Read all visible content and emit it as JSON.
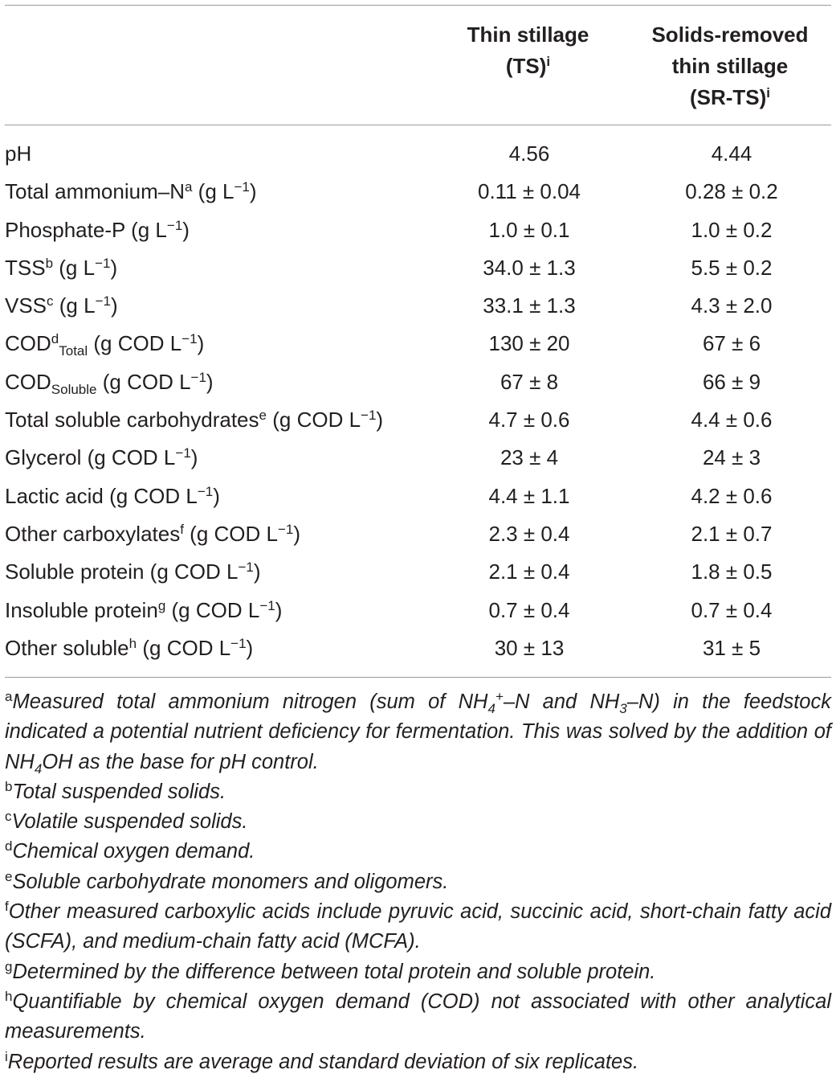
{
  "header": {
    "col1_line1": "Thin stillage",
    "col1_line2": "(TS)",
    "col1_mark": "i",
    "col2_line1": "Solids-removed",
    "col2_line2": "thin stillage",
    "col2_line3": "(SR-TS)",
    "col2_mark": "i"
  },
  "rows": [
    {
      "label": "pH",
      "ts": "4.56",
      "srts": "4.44"
    },
    {
      "label": "Total ammonium–N",
      "mark": "a",
      "unit": " (g L",
      "exp": "−1",
      "close": ")",
      "ts": "0.11 ± 0.04",
      "srts": "0.28 ± 0.2"
    },
    {
      "label": "Phosphate-P (g L",
      "exp": "−1",
      "close": ")",
      "ts": "1.0 ± 0.1",
      "srts": "1.0 ± 0.2"
    },
    {
      "label": "TSS",
      "mark": "b",
      "unit": " (g L",
      "exp": "−1",
      "close": ")",
      "ts": "34.0 ± 1.3",
      "srts": "5.5 ± 0.2"
    },
    {
      "label": "VSS",
      "mark": "c",
      "unit": " (g L",
      "exp": "−1",
      "close": ")",
      "ts": "33.1 ± 1.3",
      "srts": "4.3 ± 2.0"
    },
    {
      "label": "COD",
      "mark": "d",
      "sub": "Total",
      "unit": " (g COD L",
      "exp": "−1",
      "close": ")",
      "ts": "130 ± 20",
      "srts": "67 ± 6"
    },
    {
      "label": "COD",
      "sub": "Soluble",
      "unit": " (g COD L",
      "exp": "−1",
      "close": ")",
      "ts": "67 ± 8",
      "srts": "66 ± 9"
    },
    {
      "label": "Total soluble carbohydrates",
      "mark": "e",
      "unit": " (g COD L",
      "exp": "−1",
      "close": ")",
      "ts": "4.7 ± 0.6",
      "srts": "4.4 ± 0.6"
    },
    {
      "label": "Glycerol (g COD L",
      "exp": "−1",
      "close": ")",
      "ts": "23 ± 4",
      "srts": "24 ± 3"
    },
    {
      "label": "Lactic acid (g COD L",
      "exp": "−1",
      "close": ")",
      "ts": "4.4 ± 1.1",
      "srts": "4.2 ± 0.6"
    },
    {
      "label": "Other carboxylates",
      "mark": "f",
      "unit": " (g COD L",
      "exp": "−1",
      "close": ")",
      "ts": "2.3 ± 0.4",
      "srts": "2.1 ± 0.7"
    },
    {
      "label": "Soluble protein (g COD L",
      "exp": "−1",
      "close": ")",
      "ts": "2.1 ± 0.4",
      "srts": "1.8 ± 0.5"
    },
    {
      "label": "Insoluble protein",
      "mark": "g",
      "unit": " (g COD L",
      "exp": "−1",
      "close": ")",
      "ts": "0.7 ± 0.4",
      "srts": "0.7 ± 0.4"
    },
    {
      "label": "Other soluble",
      "mark": "h",
      "unit": " (g COD L",
      "exp": "−1",
      "close": ")",
      "ts": "30 ± 13",
      "srts": "31 ± 5"
    }
  ],
  "footnotes": {
    "a": {
      "mark": "a",
      "t1": "Measured total ammonium nitrogen (sum of NH",
      "s1": "4",
      "p1": "+",
      "t2": "–N and NH",
      "s2": "3",
      "t3": "–N) in the feedstock indicated a potential nutrient deficiency for fermentation. This was solved by the addition of NH",
      "s3": "4",
      "t4": "OH as the base for pH control."
    },
    "b": {
      "mark": "b",
      "text": "Total suspended solids."
    },
    "c": {
      "mark": "c",
      "text": "Volatile suspended solids."
    },
    "d": {
      "mark": "d",
      "text": "Chemical oxygen demand."
    },
    "e": {
      "mark": "e",
      "text": "Soluble carbohydrate monomers and oligomers."
    },
    "f": {
      "mark": "f",
      "text": "Other measured carboxylic acids include pyruvic acid, succinic acid, short-chain fatty acid (SCFA), and medium-chain fatty acid (MCFA)."
    },
    "g": {
      "mark": "g",
      "text": "Determined by the difference between total protein and soluble protein."
    },
    "h": {
      "mark": "h",
      "text": "Quantifiable by chemical oxygen demand (COD) not associated with other analytical measurements."
    },
    "i": {
      "mark": "i",
      "text": "Reported results are average and standard deviation of six replicates."
    }
  }
}
